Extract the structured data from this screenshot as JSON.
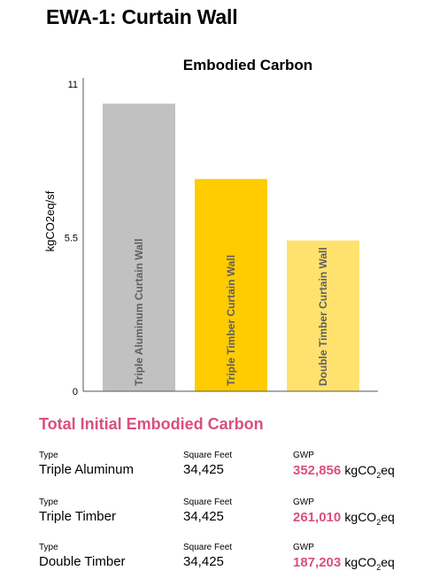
{
  "page_title": "EWA-1: Curtain Wall",
  "chart_data": {
    "type": "bar",
    "title": "Embodied Carbon",
    "ylabel": "kgCO2eq/sf",
    "xlabel": "",
    "ylim": [
      0,
      11
    ],
    "yticks": [
      "0",
      "5.5",
      "11"
    ],
    "categories": [
      "Triple Aluminum Curtain Wall",
      "Triple Timber Curtain Wall",
      "Double Timber Curtain Wall"
    ],
    "values": [
      10.3,
      7.6,
      5.4
    ],
    "colors": [
      "#c1c1c1",
      "#ffcc00",
      "#ffe26e"
    ],
    "grid": false,
    "legend": "none"
  },
  "summary": {
    "title": "Total Initial Embodied Carbon",
    "type_label": "Type",
    "sqft_label": "Square Feet",
    "gwp_label": "GWP",
    "unit_prefix": "kgCO",
    "unit_sub": "2",
    "unit_suffix": "eq",
    "rows": [
      {
        "type": "Triple Aluminum",
        "sqft": "34,425",
        "gwp": "352,856"
      },
      {
        "type": "Triple Timber",
        "sqft": "34,425",
        "gwp": "261,010"
      },
      {
        "type": "Double Timber",
        "sqft": "34,425",
        "gwp": "187,203"
      }
    ]
  }
}
